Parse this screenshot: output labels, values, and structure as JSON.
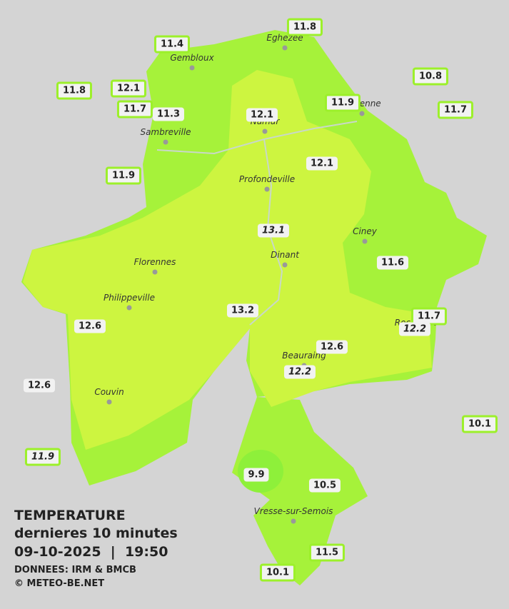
{
  "title": {
    "line1": "TEMPERATURE",
    "line2": "dernieres 10 minutes",
    "date": "09-10-2025",
    "time": "19:50",
    "source": "DONNEES: IRM & BMCB",
    "credit": "© METEO-BE.NET"
  },
  "cities": [
    "Eghezee",
    "Gembloux",
    "Andenne",
    "Namur",
    "Sambreville",
    "Profondeville",
    "Ciney",
    "Dinant",
    "Florennes",
    "Philippeville",
    "Rochefort",
    "Beauraing",
    "Couvin",
    "Vresse-sur-Semois"
  ],
  "stations": [
    11.4,
    11.8,
    10.8,
    11.8,
    12.1,
    11.7,
    11.3,
    12.1,
    11.9,
    11.7,
    11.9,
    12.1,
    13.1,
    11.6,
    13.2,
    12.6,
    11.7,
    12.2,
    12.6,
    12.2,
    12.6,
    10.1,
    11.9,
    9.9,
    10.5,
    11.5,
    10.1
  ]
}
